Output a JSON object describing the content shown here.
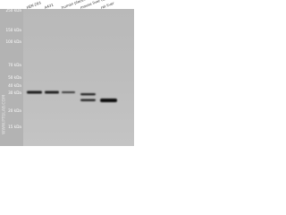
{
  "lanes": [
    "HEK-293",
    "A431",
    "human placenta tissue",
    "mouse liver tissue",
    "rat liver"
  ],
  "markers": [
    "250 kDa",
    "150 kDa",
    "100 kDa",
    "70 kDa",
    "50 kDa",
    "40 kDa",
    "30 kDa",
    "20 kDa",
    "15 kDa"
  ],
  "watermark": "WWW.PTGLAB.COM"
}
